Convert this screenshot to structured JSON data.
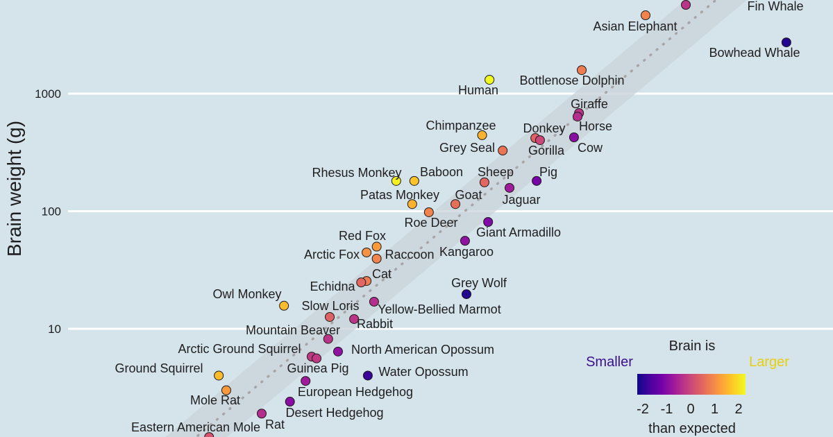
{
  "chart_data": {
    "type": "scatter",
    "title": "",
    "ylabel": "Brain weight (g)",
    "xlabel": "",
    "y_scale": "log",
    "x_scale": "log",
    "y_ticks": [
      10,
      100,
      1000
    ],
    "y_tick_labels": [
      "10",
      "100",
      "1000"
    ],
    "grid": "horizontal major lines",
    "x_unit_note": "",
    "trend": {
      "type": "dotted regression line with shaded band",
      "intercept_log10_g": 0.94,
      "slope": 0.69,
      "band_halfwidth_log10": 0.22
    },
    "colorbar": {
      "title": "Brain is",
      "low_label": "Smaller",
      "high_label": "Larger",
      "caption": "than expected",
      "ticks": [
        "-2",
        "-1",
        "0",
        "1",
        "2"
      ],
      "range": [
        -2.3,
        2.3
      ],
      "colormap": "plasma",
      "low_color": "#3b0f8c",
      "high_color": "#e6cf10"
    },
    "points": [
      {
        "name": "",
        "body_kg": 6720,
        "brain_g": 5690,
        "color_value": -0.3
      },
      {
        "name": "Fin Whale",
        "body_kg": 90000,
        "brain_g": 9000,
        "color_value": 0
      },
      {
        "name": "Asian Elephant",
        "body_kg": 2570,
        "brain_g": 4640,
        "color_value": 0.9
      },
      {
        "name": "Bowhead Whale",
        "body_kg": 74000,
        "brain_g": 2730,
        "color_value": -2.1
      },
      {
        "name": "Bottlenose Dolphin",
        "body_kg": 560,
        "brain_g": 1585,
        "color_value": 0.8
      },
      {
        "name": "Human",
        "body_kg": 62,
        "brain_g": 1313,
        "color_value": 2.3
      },
      {
        "name": "Giraffe",
        "body_kg": 525,
        "brain_g": 684,
        "color_value": -0.3
      },
      {
        "name": "Horse",
        "body_kg": 507,
        "brain_g": 638,
        "color_value": -0.4
      },
      {
        "name": "Chimpanzee",
        "body_kg": 52,
        "brain_g": 443,
        "color_value": 1.5
      },
      {
        "name": "Donkey",
        "body_kg": 185,
        "brain_g": 419,
        "color_value": 0.4
      },
      {
        "name": "Gorilla",
        "body_kg": 207,
        "brain_g": 402,
        "color_value": 0.0
      },
      {
        "name": "Cow",
        "body_kg": 466,
        "brain_g": 425,
        "color_value": -1.0
      },
      {
        "name": "Grey Seal",
        "body_kg": 85,
        "brain_g": 328,
        "color_value": 0.7
      },
      {
        "name": "Rhesus Monkey",
        "body_kg": 6.7,
        "brain_g": 181,
        "color_value": 2.2
      },
      {
        "name": "Baboon",
        "body_kg": 10.3,
        "brain_g": 181,
        "color_value": 1.7
      },
      {
        "name": "Sheep",
        "body_kg": 55,
        "brain_g": 176,
        "color_value": 0.5
      },
      {
        "name": "Pig",
        "body_kg": 191,
        "brain_g": 181,
        "color_value": -1.2
      },
      {
        "name": "Jaguar",
        "body_kg": 100,
        "brain_g": 158,
        "color_value": -0.7
      },
      {
        "name": "Patas Monkey",
        "body_kg": 9.8,
        "brain_g": 115,
        "color_value": 1.5
      },
      {
        "name": "Goat",
        "body_kg": 27.5,
        "brain_g": 115,
        "color_value": 0.6
      },
      {
        "name": "Roe Deer",
        "body_kg": 14.6,
        "brain_g": 98,
        "color_value": 0.9
      },
      {
        "name": "Giant Armadillo",
        "body_kg": 60,
        "brain_g": 81,
        "color_value": -1.1
      },
      {
        "name": "Kangaroo",
        "body_kg": 34.6,
        "brain_g": 56,
        "color_value": -0.9
      },
      {
        "name": "Red Fox",
        "body_kg": 4.2,
        "brain_g": 50,
        "color_value": 1.2
      },
      {
        "name": "Arctic Fox",
        "body_kg": 3.3,
        "brain_g": 44.6,
        "color_value": 1.1
      },
      {
        "name": "Raccoon",
        "body_kg": 4.2,
        "brain_g": 39.5,
        "color_value": 0.9
      },
      {
        "name": "Cat",
        "body_kg": 3.3,
        "brain_g": 25.5,
        "color_value": 0.8
      },
      {
        "name": "Echidna",
        "body_kg": 2.9,
        "brain_g": 24.8,
        "color_value": 0.5
      },
      {
        "name": "Grey Wolf",
        "body_kg": 35.8,
        "brain_g": 19.7,
        "color_value": -2.1
      },
      {
        "name": "Owl Monkey",
        "body_kg": 0.46,
        "brain_g": 15.7,
        "color_value": 1.6
      },
      {
        "name": "Slow Loris",
        "body_kg": 1.37,
        "brain_g": 12.6,
        "color_value": 0.4
      },
      {
        "name": "Yellow-Bellied Marmot",
        "body_kg": 3.95,
        "brain_g": 17,
        "color_value": -0.4
      },
      {
        "name": "Rabbit",
        "body_kg": 2.45,
        "brain_g": 12.1,
        "color_value": -0.3
      },
      {
        "name": "Mountain Beaver",
        "body_kg": 1.32,
        "brain_g": 8.2,
        "color_value": -0.3
      },
      {
        "name": "Arctic Ground Squirrel",
        "body_kg": 0.89,
        "brain_g": 5.8,
        "color_value": -0.2
      },
      {
        "name": "Guinea Pig",
        "body_kg": 1.0,
        "brain_g": 5.6,
        "color_value": -0.2
      },
      {
        "name": "North American Opossum",
        "body_kg": 1.67,
        "brain_g": 6.4,
        "color_value": -0.9
      },
      {
        "name": "Ground Squirrel",
        "body_kg": 0.097,
        "brain_g": 4.0,
        "color_value": 1.6
      },
      {
        "name": "Water Opossum",
        "body_kg": 3.4,
        "brain_g": 4.0,
        "color_value": -1.9
      },
      {
        "name": "European Hedgehog",
        "body_kg": 0.77,
        "brain_g": 3.6,
        "color_value": -0.7
      },
      {
        "name": "Mole Rat",
        "body_kg": 0.116,
        "brain_g": 3.0,
        "color_value": 1.2
      },
      {
        "name": "Desert Hedgehog",
        "body_kg": 0.53,
        "brain_g": 2.4,
        "color_value": -1.0
      },
      {
        "name": "Rat",
        "body_kg": 0.27,
        "brain_g": 1.9,
        "color_value": -0.4
      },
      {
        "name": "Eastern American Mole",
        "body_kg": 0.077,
        "brain_g": 1.2,
        "color_value": 0.2
      }
    ]
  }
}
